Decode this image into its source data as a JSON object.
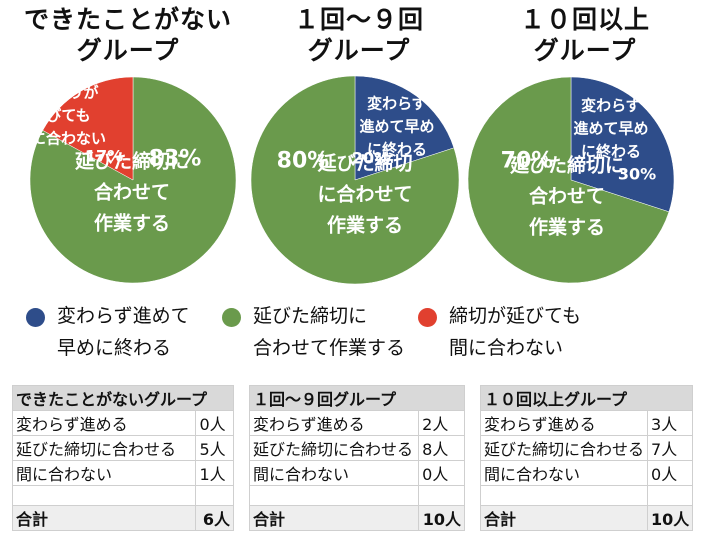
{
  "colors": {
    "blue": "#2e4d8a",
    "green": "#6a9a4c",
    "red": "#e1402f"
  },
  "legend": [
    {
      "label": "変わらず進めて\n早めに終わる",
      "color": "#2e4d8a"
    },
    {
      "label": "延びた締切に\n合わせて作業する",
      "color": "#6a9a4c"
    },
    {
      "label": "締切が延びても\n間に合わない",
      "color": "#e1402f"
    }
  ],
  "chart_data": [
    {
      "type": "pie",
      "title": "できたことがない\nグループ",
      "slices": [
        {
          "name": "延びた締切に合わせて作業する",
          "value": 83,
          "color": "#6a9a4c",
          "text": "延びた締切に\n合わせて\n作業する",
          "pct": "83%"
        },
        {
          "name": "締め切りが延びても間に合わない",
          "value": 17,
          "color": "#e1402f",
          "text": "締め切りが\n延びても\n間に合わない",
          "pct": "17%"
        }
      ]
    },
    {
      "type": "pie",
      "title": "１回〜９回\nグループ",
      "slices": [
        {
          "name": "変わらず進めて早めに終わる",
          "value": 20,
          "color": "#2e4d8a",
          "text": "変わらず\n進めて早め\nに終わる",
          "pct": "20%"
        },
        {
          "name": "延びた締切に合わせて作業する",
          "value": 80,
          "color": "#6a9a4c",
          "text": "延びた締切\nに合わせて\n作業する",
          "pct": "80%"
        }
      ]
    },
    {
      "type": "pie",
      "title": "１０回以上\nグループ",
      "slices": [
        {
          "name": "変わらず進めて早めに終わる",
          "value": 30,
          "color": "#2e4d8a",
          "text": "変わらず\n進めて早め\nに終わる",
          "pct": "30%"
        },
        {
          "name": "延びた締切に合わせて作業する",
          "value": 70,
          "color": "#6a9a4c",
          "text": "延びた締切に\n合わせて\n作業する",
          "pct": "70%"
        }
      ]
    }
  ],
  "tables": [
    {
      "title": "できたことがないグループ",
      "rows": [
        [
          "変わらず進める",
          "0人"
        ],
        [
          "延びた締切に合わせる",
          "5人"
        ],
        [
          "間に合わない",
          "1人"
        ]
      ],
      "total_label": "合計",
      "total": "6人"
    },
    {
      "title": "１回〜９回グループ",
      "rows": [
        [
          "変わらず進める",
          "2人"
        ],
        [
          "延びた締切に合わせる",
          "8人"
        ],
        [
          "間に合わない",
          "0人"
        ]
      ],
      "total_label": "合計",
      "total": "10人"
    },
    {
      "title": "１０回以上グループ",
      "rows": [
        [
          "変わらず進める",
          "3人"
        ],
        [
          "延びた締切に合わせる",
          "7人"
        ],
        [
          "間に合わない",
          "0人"
        ]
      ],
      "total_label": "合計",
      "total": "10人"
    }
  ]
}
